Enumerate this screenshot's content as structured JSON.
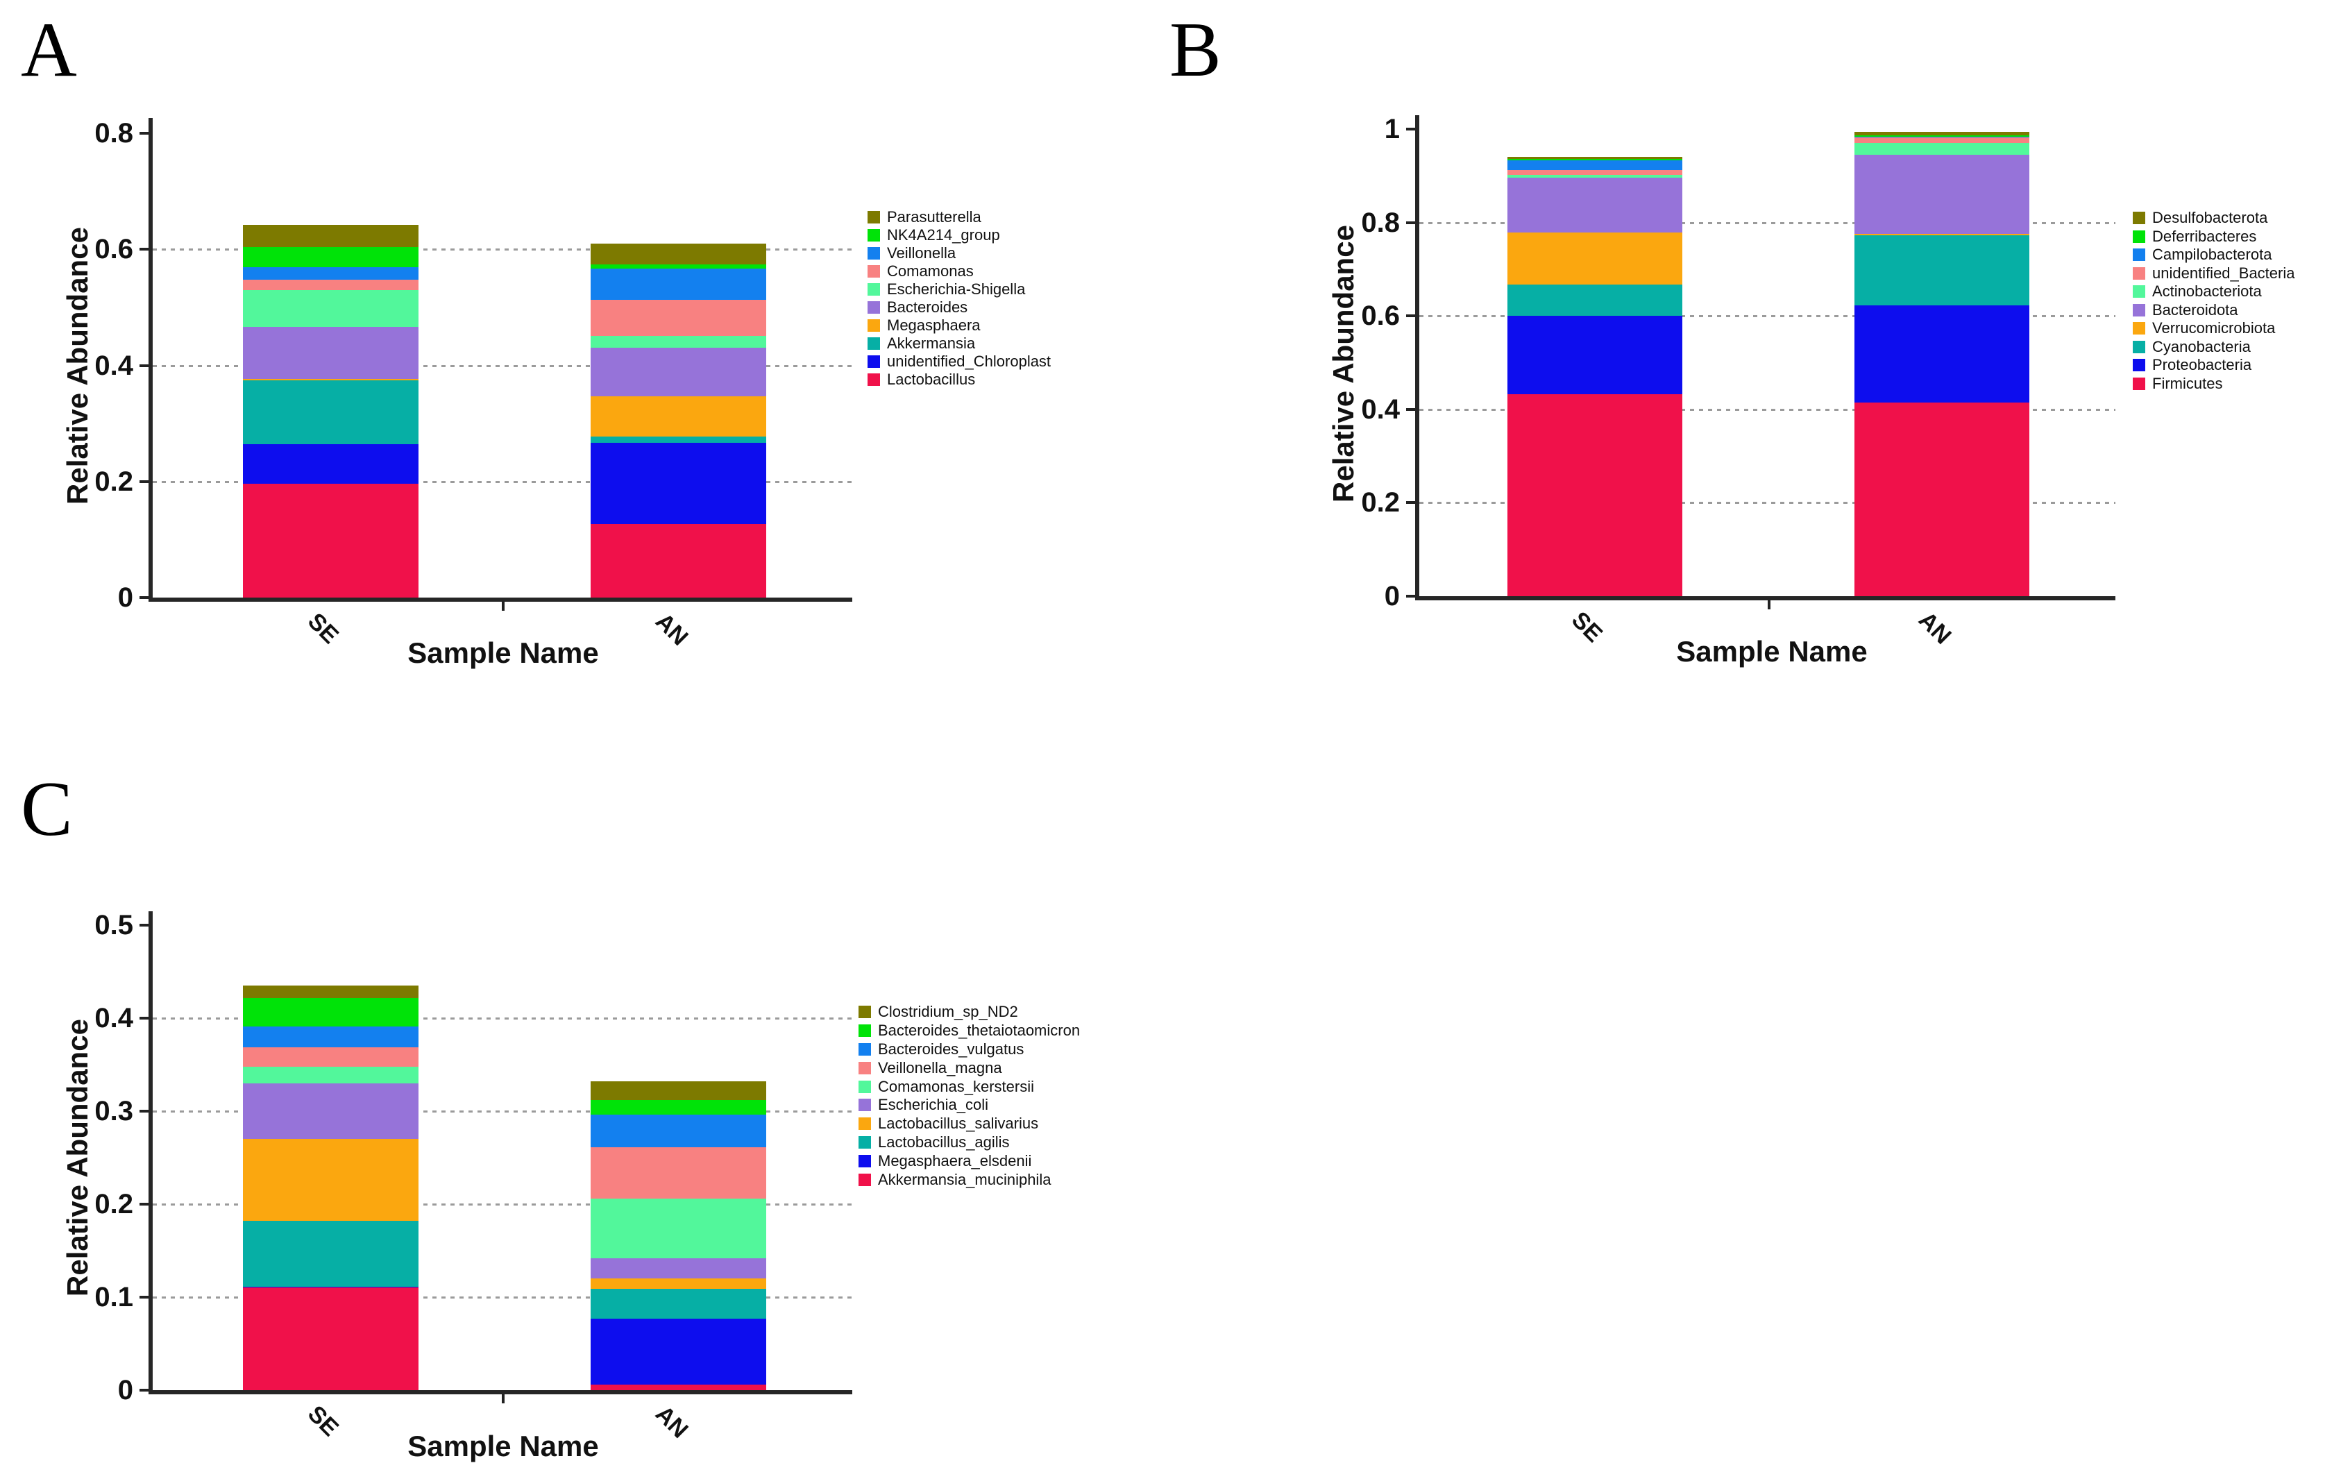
{
  "figure_title": "",
  "panel_labels": [
    "A",
    "B",
    "C"
  ],
  "chart_data": [
    {
      "type": "bar",
      "stacked": true,
      "panel": "A",
      "title": "",
      "xlabel": "Sample Name",
      "ylabel": "Relative Abundance",
      "categories": [
        "SE",
        "AN"
      ],
      "ylim": [
        0,
        0.8
      ],
      "ytick_labels": [
        "0.8",
        "0.6",
        "0.4",
        "0.2",
        "0"
      ],
      "ytick_values": [
        0.8,
        0.6,
        0.4,
        0.2,
        0
      ],
      "gridline_values": [
        0.6,
        0.4,
        0.2
      ],
      "grid": true,
      "legend_position": "right",
      "series": [
        {
          "name": "Parasutterella",
          "color": "#7d7a00",
          "values": [
            0.038,
            0.036
          ]
        },
        {
          "name": "NK4A214_group",
          "color": "#00e308",
          "values": [
            0.035,
            0.007
          ]
        },
        {
          "name": "Veillonella",
          "color": "#1380ef",
          "values": [
            0.021,
            0.054
          ]
        },
        {
          "name": "Comamonas",
          "color": "#f88181",
          "values": [
            0.018,
            0.062
          ]
        },
        {
          "name": "Escherichia-Shigella",
          "color": "#52f79b",
          "values": [
            0.064,
            0.02
          ]
        },
        {
          "name": "Bacteroides",
          "color": "#9673d9",
          "values": [
            0.089,
            0.084
          ]
        },
        {
          "name": "Megasphaera",
          "color": "#fba70f",
          "values": [
            0.003,
            0.07
          ]
        },
        {
          "name": "Akkermansia",
          "color": "#06afa5",
          "values": [
            0.11,
            0.01
          ]
        },
        {
          "name": "unidentified_Chloroplast",
          "color": "#0d0dee",
          "values": [
            0.068,
            0.14
          ]
        },
        {
          "name": "Lactobacillus",
          "color": "#f0114a",
          "values": [
            0.196,
            0.127
          ]
        }
      ]
    },
    {
      "type": "bar",
      "stacked": true,
      "panel": "B",
      "title": "",
      "xlabel": "Sample Name",
      "ylabel": "Relative Abundance",
      "categories": [
        "SE",
        "AN"
      ],
      "ylim": [
        0,
        1
      ],
      "ytick_labels": [
        "1",
        "0.8",
        "0.6",
        "0.4",
        "0.2",
        "0"
      ],
      "ytick_values": [
        1,
        0.8,
        0.6,
        0.4,
        0.2,
        0
      ],
      "gridline_values": [
        0.8,
        0.6,
        0.4,
        0.2
      ],
      "grid": true,
      "legend_position": "right",
      "series": [
        {
          "name": "Desulfobacterota",
          "color": "#7d7a00",
          "values": [
            0.004,
            0.008
          ]
        },
        {
          "name": "Deferribacteres",
          "color": "#00e308",
          "values": [
            0.003,
            0.002
          ]
        },
        {
          "name": "Campilobacterota",
          "color": "#1380ef",
          "values": [
            0.021,
            0.002
          ]
        },
        {
          "name": "unidentified_Bacteria",
          "color": "#f88181",
          "values": [
            0.01,
            0.012
          ]
        },
        {
          "name": "Actinobacteriota",
          "color": "#52f79b",
          "values": [
            0.006,
            0.025
          ]
        },
        {
          "name": "Bacteroidota",
          "color": "#9673d9",
          "values": [
            0.118,
            0.169
          ]
        },
        {
          "name": "Verrucomicrobiota",
          "color": "#fba70f",
          "values": [
            0.111,
            0.004
          ]
        },
        {
          "name": "Cyanobacteria",
          "color": "#06afa5",
          "values": [
            0.067,
            0.149
          ]
        },
        {
          "name": "Proteobacteria",
          "color": "#0d0dee",
          "values": [
            0.167,
            0.208
          ]
        },
        {
          "name": "Firmicutes",
          "color": "#f0114a",
          "values": [
            0.433,
            0.415
          ]
        }
      ]
    },
    {
      "type": "bar",
      "stacked": true,
      "panel": "C",
      "title": "",
      "xlabel": "Sample Name",
      "ylabel": "Relative Abundance",
      "categories": [
        "SE",
        "AN"
      ],
      "ylim": [
        0,
        0.5
      ],
      "ytick_labels": [
        "0.5",
        "0.4",
        "0.3",
        "0.2",
        "0.1",
        "0"
      ],
      "ytick_values": [
        0.5,
        0.4,
        0.3,
        0.2,
        0.1,
        0
      ],
      "gridline_values": [
        0.4,
        0.3,
        0.2,
        0.1
      ],
      "grid": true,
      "legend_position": "right",
      "series": [
        {
          "name": "Clostridium_sp_ND2",
          "color": "#7d7a00",
          "values": [
            0.013,
            0.02
          ]
        },
        {
          "name": "Bacteroides_thetaiotaomicron",
          "color": "#00e308",
          "values": [
            0.031,
            0.016
          ]
        },
        {
          "name": "Bacteroides_vulgatus",
          "color": "#1380ef",
          "values": [
            0.022,
            0.035
          ]
        },
        {
          "name": "Veillonella_magna",
          "color": "#f88181",
          "values": [
            0.021,
            0.055
          ]
        },
        {
          "name": "Comamonas_kerstersii",
          "color": "#52f79b",
          "values": [
            0.018,
            0.064
          ]
        },
        {
          "name": "Escherichia_coli",
          "color": "#9673d9",
          "values": [
            0.06,
            0.022
          ]
        },
        {
          "name": "Lactobacillus_salivarius",
          "color": "#fba70f",
          "values": [
            0.088,
            0.011
          ]
        },
        {
          "name": "Lactobacillus_agilis",
          "color": "#06afa5",
          "values": [
            0.071,
            0.032
          ]
        },
        {
          "name": "Megasphaera_elsdenii",
          "color": "#0d0dee",
          "values": [
            0.001,
            0.071
          ]
        },
        {
          "name": "Akkermansia_muciniphila",
          "color": "#f0114a",
          "values": [
            0.11,
            0.006
          ]
        }
      ]
    }
  ]
}
